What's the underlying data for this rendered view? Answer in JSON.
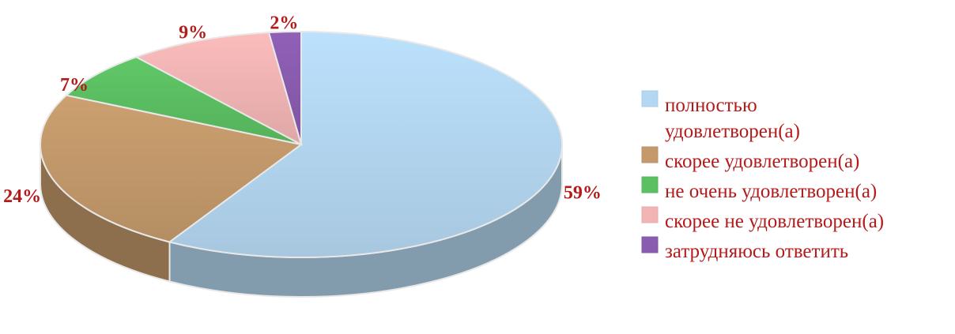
{
  "chart_data": {
    "type": "pie",
    "style": "3d",
    "categories": [
      "полностью удовлетворен(а)",
      "скорее удовлетворен(а)",
      "не очень удовлетворен(а)",
      "скорее не удовлетворен(а)",
      "затрудняюсь ответить"
    ],
    "values": [
      59,
      24,
      7,
      9,
      2
    ],
    "data_labels": [
      "59%",
      "24%",
      "7%",
      "9%",
      "2%"
    ],
    "colors": [
      "#b5d8f2",
      "#c49a6c",
      "#5cc063",
      "#f2b5b5",
      "#8a5cb0"
    ],
    "label_color": "#b31b1b",
    "legend": {
      "position": "right",
      "text_color": "#b31b1b",
      "entries": [
        {
          "lines": [
            "полностью",
            "удовлетворен(а)"
          ]
        },
        {
          "lines": [
            "скорее удовлетворен(а)"
          ]
        },
        {
          "lines": [
            "не очень удовлетворен(а)"
          ]
        },
        {
          "lines": [
            "скорее не удовлетворен(а)"
          ]
        },
        {
          "lines": [
            "затрудняюсь ответить"
          ]
        }
      ]
    }
  }
}
